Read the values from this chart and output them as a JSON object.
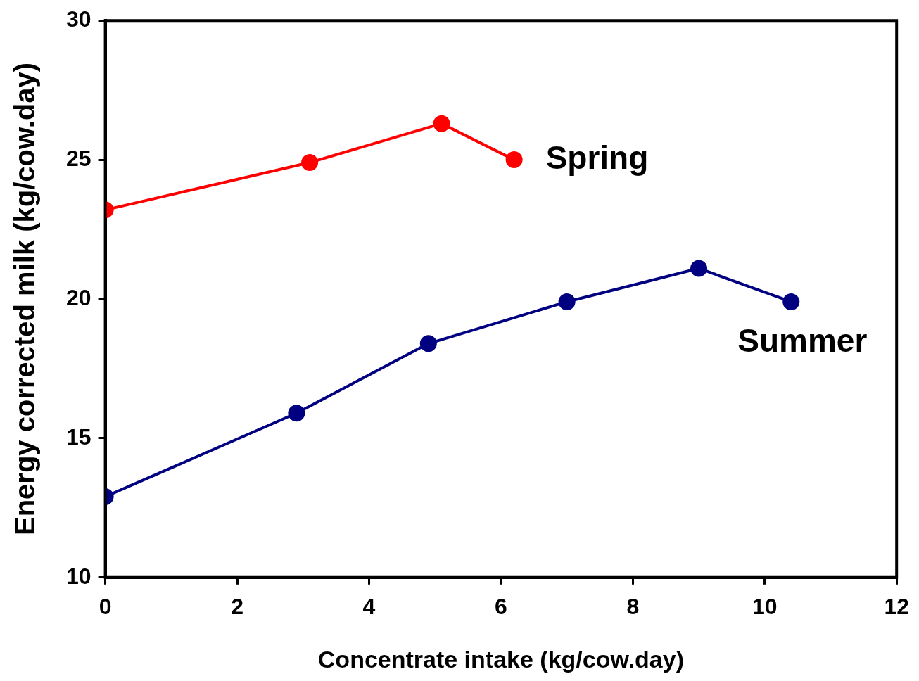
{
  "chart_data": {
    "type": "line",
    "xlabel": "Concentrate intake (kg/cow.day)",
    "ylabel": "Energy corrected milk (kg/cow.day)",
    "xlim": [
      0,
      12
    ],
    "xticks": [
      0,
      2,
      4,
      6,
      8,
      10,
      12
    ],
    "ylim": [
      10,
      30
    ],
    "yticks": [
      10,
      15,
      20,
      25,
      30
    ],
    "grid": false,
    "legend": false,
    "marker": "circle",
    "line_style": "solid",
    "series": [
      {
        "name": "Spring",
        "color": "#ff0000",
        "x": [
          0,
          3.1,
          5.1,
          6.2
        ],
        "values": [
          23.2,
          24.9,
          26.3,
          25.0
        ]
      },
      {
        "name": "Summer",
        "color": "#000080",
        "x": [
          0,
          2.9,
          4.9,
          7.0,
          9.0,
          10.4
        ],
        "values": [
          12.9,
          15.9,
          18.4,
          19.9,
          21.1,
          19.9
        ]
      }
    ]
  }
}
